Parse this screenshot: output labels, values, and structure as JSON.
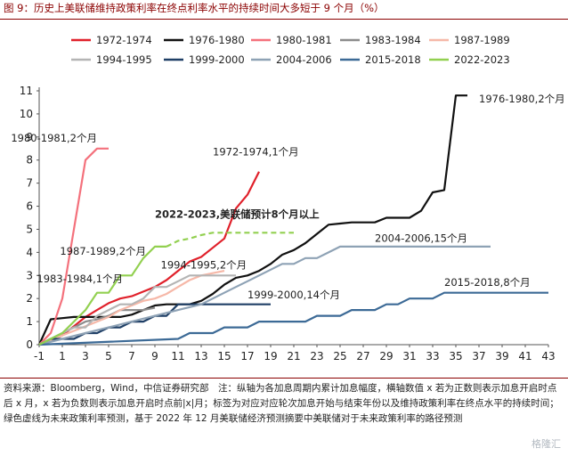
{
  "title": "图 9：历史上美联储维持政策利率在终点利率水平的持续时间大多短于 9 个月（%）",
  "source_note": "资料来源：Bloomberg，Wind，中信证券研究部　注：纵轴为各加息周期内累计加息幅度，横轴数值 x 若为正数则表示加息开启时点后 x 月，x 若为负数则表示加息开启时点前|x|月；标签为对应对应轮次加息开始与结束年份以及维持政策利率在终点水平的持续时间；绿色虚线为未来政策利率预测，基于 2022 年 12 月美联储经济预测摘要中美联储对于未来政策利率的路径预测",
  "watermark": "格隆汇",
  "colors": {
    "title": "#8b0000",
    "1972-1974": "#e0212b",
    "1976-1980": "#111111",
    "1980-1981": "#f4717c",
    "1983-1984": "#8c8c8c",
    "1987-1989": "#f6b8a8",
    "1994-1995": "#b4b4b4",
    "1999-2000": "#1f3f66",
    "2004-2006": "#8ea2b5",
    "2015-2018": "#3c6a96",
    "2022-2023": "#92d050"
  },
  "chart_data": {
    "type": "line",
    "xlabel": "",
    "ylabel": "",
    "xlim": [
      -1,
      43
    ],
    "ylim": [
      0,
      11
    ],
    "x_ticks": [
      "-1",
      "1",
      "3",
      "5",
      "7",
      "9",
      "11",
      "13",
      "15",
      "17",
      "19",
      "21",
      "23",
      "25",
      "27",
      "29",
      "31",
      "33",
      "35",
      "37",
      "39",
      "41",
      "43"
    ],
    "y_ticks": [
      "0",
      "1",
      "2",
      "3",
      "4",
      "5",
      "6",
      "7",
      "8",
      "9",
      "10",
      "11"
    ],
    "legend_position": "top",
    "series": [
      {
        "name": "1972-1974",
        "color": "#e0212b",
        "dashed": false,
        "points": [
          [
            -1,
            0
          ],
          [
            0,
            0.2
          ],
          [
            1,
            0.4
          ],
          [
            2,
            0.8
          ],
          [
            3,
            1.2
          ],
          [
            4,
            1.5
          ],
          [
            5,
            1.8
          ],
          [
            6,
            2
          ],
          [
            7,
            2.1
          ],
          [
            8,
            2.3
          ],
          [
            9,
            2.5
          ],
          [
            10,
            2.8
          ],
          [
            11,
            3.2
          ],
          [
            12,
            3.6
          ],
          [
            13,
            3.8
          ],
          [
            14,
            4.2
          ],
          [
            15,
            4.6
          ],
          [
            16,
            5.9
          ],
          [
            17,
            6.5
          ],
          [
            18,
            7.5
          ]
        ]
      },
      {
        "name": "1976-1980",
        "color": "#111111",
        "dashed": false,
        "points": [
          [
            -1,
            0
          ],
          [
            0,
            1.1
          ],
          [
            1,
            1.15
          ],
          [
            2,
            1.2
          ],
          [
            3,
            1.2
          ],
          [
            4,
            1.2
          ],
          [
            5,
            1.2
          ],
          [
            6,
            1.2
          ],
          [
            7,
            1.3
          ],
          [
            8,
            1.5
          ],
          [
            9,
            1.7
          ],
          [
            10,
            1.75
          ],
          [
            11,
            1.75
          ],
          [
            12,
            1.75
          ],
          [
            13,
            1.9
          ],
          [
            14,
            2.2
          ],
          [
            15,
            2.6
          ],
          [
            16,
            2.9
          ],
          [
            17,
            3
          ],
          [
            18,
            3.2
          ],
          [
            19,
            3.5
          ],
          [
            20,
            3.9
          ],
          [
            21,
            4.1
          ],
          [
            22,
            4.4
          ],
          [
            23,
            4.8
          ],
          [
            24,
            5.2
          ],
          [
            25,
            5.25
          ],
          [
            26,
            5.3
          ],
          [
            27,
            5.3
          ],
          [
            28,
            5.3
          ],
          [
            29,
            5.5
          ],
          [
            30,
            5.5
          ],
          [
            31,
            5.5
          ],
          [
            32,
            5.8
          ],
          [
            33,
            6.6
          ],
          [
            34,
            6.7
          ],
          [
            35,
            10.8
          ],
          [
            36,
            10.8
          ]
        ]
      },
      {
        "name": "1980-1981",
        "color": "#f4717c",
        "dashed": false,
        "points": [
          [
            -1,
            0
          ],
          [
            0,
            0.5
          ],
          [
            1,
            2
          ],
          [
            2,
            5
          ],
          [
            3,
            8
          ],
          [
            4,
            8.5
          ],
          [
            5,
            8.5
          ]
        ]
      },
      {
        "name": "1983-1984",
        "color": "#8c8c8c",
        "dashed": false,
        "points": [
          [
            -1,
            0
          ],
          [
            0,
            0.25
          ],
          [
            1,
            0.5
          ],
          [
            2,
            0.75
          ],
          [
            3,
            1
          ],
          [
            4,
            1.1
          ],
          [
            5,
            1.25
          ],
          [
            6,
            1.5
          ],
          [
            7,
            1.5
          ],
          [
            8,
            1.5
          ],
          [
            9,
            1.6
          ]
        ]
      },
      {
        "name": "1987-1989",
        "color": "#f6b8a8",
        "dashed": false,
        "points": [
          [
            -1,
            0
          ],
          [
            0,
            0.2
          ],
          [
            1,
            0.4
          ],
          [
            2,
            0.6
          ],
          [
            3,
            0.8
          ],
          [
            4,
            1.0
          ],
          [
            5,
            1.2
          ],
          [
            6,
            1.5
          ],
          [
            7,
            1.7
          ],
          [
            8,
            1.9
          ],
          [
            9,
            2.0
          ],
          [
            10,
            2.2
          ],
          [
            11,
            2.5
          ],
          [
            12,
            2.8
          ],
          [
            13,
            3.0
          ],
          [
            14,
            3.1
          ],
          [
            15,
            3.2
          ]
        ]
      },
      {
        "name": "1994-1995",
        "color": "#b4b4b4",
        "dashed": false,
        "points": [
          [
            -1,
            0
          ],
          [
            0,
            0.25
          ],
          [
            1,
            0.5
          ],
          [
            2,
            0.75
          ],
          [
            3,
            0.75
          ],
          [
            4,
            1.25
          ],
          [
            5,
            1.5
          ],
          [
            6,
            1.75
          ],
          [
            7,
            1.75
          ],
          [
            8,
            2
          ],
          [
            9,
            2.5
          ],
          [
            10,
            2.5
          ],
          [
            11,
            2.75
          ],
          [
            12,
            3
          ],
          [
            13,
            3
          ],
          [
            14,
            3
          ],
          [
            15,
            3
          ],
          [
            16,
            3
          ]
        ]
      },
      {
        "name": "1999-2000",
        "color": "#1f3f66",
        "dashed": false,
        "points": [
          [
            -1,
            0
          ],
          [
            0,
            0.25
          ],
          [
            1,
            0.25
          ],
          [
            2,
            0.25
          ],
          [
            3,
            0.5
          ],
          [
            4,
            0.5
          ],
          [
            5,
            0.75
          ],
          [
            6,
            0.75
          ],
          [
            7,
            1
          ],
          [
            8,
            1
          ],
          [
            9,
            1.25
          ],
          [
            10,
            1.25
          ],
          [
            11,
            1.75
          ],
          [
            12,
            1.75
          ],
          [
            13,
            1.75
          ],
          [
            14,
            1.75
          ],
          [
            15,
            1.75
          ],
          [
            16,
            1.75
          ],
          [
            17,
            1.75
          ],
          [
            18,
            1.75
          ],
          [
            19,
            1.75
          ]
        ]
      },
      {
        "name": "2004-2006",
        "color": "#8ea2b5",
        "dashed": false,
        "points": [
          [
            -1,
            0
          ],
          [
            1,
            0.25
          ],
          [
            3,
            0.5
          ],
          [
            5,
            0.75
          ],
          [
            7,
            1
          ],
          [
            9,
            1.25
          ],
          [
            11,
            1.5
          ],
          [
            13,
            1.75
          ],
          [
            14,
            2
          ],
          [
            15,
            2.25
          ],
          [
            16,
            2.5
          ],
          [
            17,
            2.75
          ],
          [
            18,
            3
          ],
          [
            19,
            3.25
          ],
          [
            20,
            3.5
          ],
          [
            21,
            3.5
          ],
          [
            22,
            3.75
          ],
          [
            23,
            3.75
          ],
          [
            24,
            4
          ],
          [
            25,
            4.25
          ],
          [
            38,
            4.25
          ]
        ]
      },
      {
        "name": "2015-2018",
        "color": "#3c6a96",
        "dashed": false,
        "points": [
          [
            -1,
            0
          ],
          [
            11,
            0.25
          ],
          [
            12,
            0.5
          ],
          [
            13,
            0.5
          ],
          [
            14,
            0.5
          ],
          [
            15,
            0.75
          ],
          [
            16,
            0.75
          ],
          [
            17,
            0.75
          ],
          [
            18,
            1
          ],
          [
            19,
            1
          ],
          [
            20,
            1
          ],
          [
            21,
            1
          ],
          [
            22,
            1
          ],
          [
            23,
            1.25
          ],
          [
            24,
            1.25
          ],
          [
            25,
            1.25
          ],
          [
            26,
            1.5
          ],
          [
            27,
            1.5
          ],
          [
            28,
            1.5
          ],
          [
            29,
            1.75
          ],
          [
            30,
            1.75
          ],
          [
            31,
            2
          ],
          [
            32,
            2
          ],
          [
            33,
            2
          ],
          [
            34,
            2.25
          ],
          [
            43,
            2.25
          ]
        ]
      },
      {
        "name": "2022-2023",
        "color": "#92d050",
        "dashed": false,
        "points": [
          [
            -1,
            0
          ],
          [
            0,
            0.25
          ],
          [
            1,
            0.5
          ],
          [
            2,
            1.0
          ],
          [
            3,
            1.5
          ],
          [
            4,
            2.25
          ],
          [
            5,
            2.25
          ],
          [
            6,
            3
          ],
          [
            7,
            3
          ],
          [
            8,
            3.75
          ],
          [
            9,
            4.25
          ],
          [
            10,
            4.25
          ]
        ]
      },
      {
        "name": "",
        "color": "#92d050",
        "dashed": true,
        "points": [
          [
            10,
            4.25
          ],
          [
            11,
            4.5
          ],
          [
            12,
            4.6
          ],
          [
            13,
            4.75
          ],
          [
            14,
            4.85
          ],
          [
            15,
            4.85
          ],
          [
            16,
            4.85
          ],
          [
            17,
            4.85
          ],
          [
            18,
            4.85
          ],
          [
            19,
            4.85
          ],
          [
            20,
            4.85
          ],
          [
            21,
            4.85
          ]
        ]
      }
    ],
    "annotations": [
      {
        "text": "1980-1981,2个月",
        "x": 4.0,
        "y": 8.8,
        "anchor": "end"
      },
      {
        "text": "1972-1974,1个月",
        "x": 14.0,
        "y": 8.2,
        "anchor": "start"
      },
      {
        "text": "1976-1980,2个月",
        "x": 37.0,
        "y": 10.5,
        "anchor": "start"
      },
      {
        "text": "2022-2023,美联储预计8个月以上",
        "x": 9.0,
        "y": 5.5,
        "anchor": "start",
        "bold": true
      },
      {
        "text": "2004-2006,15个月",
        "x": 28.0,
        "y": 4.45,
        "anchor": "start"
      },
      {
        "text": "1987-1989,2个月",
        "x": 0.8,
        "y": 3.9,
        "anchor": "start"
      },
      {
        "text": "1994-1995,2个月",
        "x": 9.5,
        "y": 3.3,
        "anchor": "start"
      },
      {
        "text": "1983-1984,1个月",
        "x": -1.2,
        "y": 2.7,
        "anchor": "start"
      },
      {
        "text": "1999-2000,14个月",
        "x": 17.0,
        "y": 2.0,
        "anchor": "start"
      },
      {
        "text": "2015-2018,8个月",
        "x": 34.0,
        "y": 2.55,
        "anchor": "start"
      }
    ]
  }
}
